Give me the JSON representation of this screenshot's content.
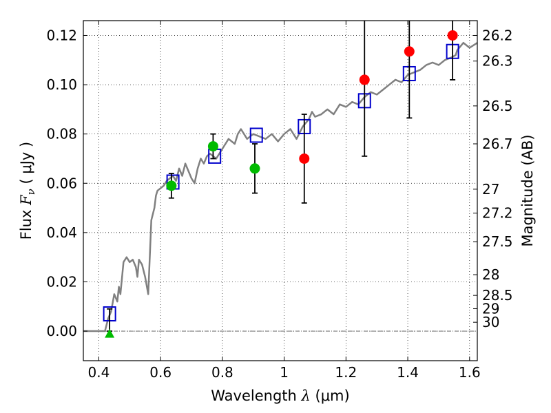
{
  "chart_data": {
    "type": "scatter",
    "title": "",
    "xlabel": "Wavelength  λ (μm)",
    "xlabel_parts": {
      "text": "Wavelength  ",
      "symbol": "λ",
      "unit": " (μm)"
    },
    "ylabel": "Flux  Fν ( μJy )",
    "ylabel_parts": {
      "text": "Flux  ",
      "symbol": "F",
      "sub": "ν",
      "unit": " ( μJy )"
    },
    "ylabel_right": "Magnitude (AB)",
    "xlim": [
      0.35,
      1.625
    ],
    "ylim": [
      -0.012,
      0.126
    ],
    "grid": true,
    "x_ticks": [
      {
        "value": 0.4,
        "label": "0.4"
      },
      {
        "value": 0.6,
        "label": "0.6"
      },
      {
        "value": 0.8,
        "label": "0.8"
      },
      {
        "value": 1.0,
        "label": "1"
      },
      {
        "value": 1.2,
        "label": "1.2"
      },
      {
        "value": 1.4,
        "label": "1.4"
      },
      {
        "value": 1.6,
        "label": "1.6"
      }
    ],
    "y_ticks": [
      {
        "value": 0.0,
        "label": "0.00"
      },
      {
        "value": 0.02,
        "label": "0.02"
      },
      {
        "value": 0.04,
        "label": "0.04"
      },
      {
        "value": 0.06,
        "label": "0.06"
      },
      {
        "value": 0.08,
        "label": "0.08"
      },
      {
        "value": 0.1,
        "label": "0.10"
      },
      {
        "value": 0.12,
        "label": "0.12"
      }
    ],
    "right_ticks": [
      {
        "flux": 0.12,
        "label": "26.2"
      },
      {
        "flux": 0.1096,
        "label": "26.3"
      },
      {
        "flux": 0.0914,
        "label": "26.5"
      },
      {
        "flux": 0.076,
        "label": "26.7"
      },
      {
        "flux": 0.0576,
        "label": "27"
      },
      {
        "flux": 0.0479,
        "label": "27.2"
      },
      {
        "flux": 0.0363,
        "label": "27.5"
      },
      {
        "flux": 0.0229,
        "label": "28"
      },
      {
        "flux": 0.0145,
        "label": "28.5"
      },
      {
        "flux": 0.0091,
        "label": "29"
      },
      {
        "flux": 0.0036,
        "label": "30"
      }
    ],
    "series": [
      {
        "kind": "model_spectrum",
        "color": "#808080",
        "x": [
          0.35,
          0.42,
          0.43,
          0.44,
          0.45,
          0.46,
          0.465,
          0.47,
          0.48,
          0.49,
          0.5,
          0.51,
          0.52,
          0.525,
          0.53,
          0.54,
          0.55,
          0.56,
          0.565,
          0.57,
          0.58,
          0.585,
          0.59,
          0.6,
          0.61,
          0.62,
          0.63,
          0.64,
          0.65,
          0.66,
          0.67,
          0.68,
          0.69,
          0.7,
          0.71,
          0.72,
          0.73,
          0.74,
          0.75,
          0.76,
          0.78,
          0.8,
          0.82,
          0.84,
          0.85,
          0.86,
          0.88,
          0.9,
          0.92,
          0.94,
          0.96,
          0.98,
          1.0,
          1.02,
          1.04,
          1.06,
          1.08,
          1.09,
          1.1,
          1.12,
          1.14,
          1.16,
          1.18,
          1.2,
          1.22,
          1.24,
          1.26,
          1.28,
          1.3,
          1.32,
          1.34,
          1.36,
          1.38,
          1.4,
          1.42,
          1.44,
          1.46,
          1.48,
          1.5,
          1.52,
          1.54,
          1.555,
          1.56,
          1.58,
          1.6,
          1.625
        ],
        "y": [
          0.0,
          0.0,
          0.005,
          0.008,
          0.015,
          0.012,
          0.018,
          0.015,
          0.028,
          0.03,
          0.028,
          0.029,
          0.026,
          0.022,
          0.029,
          0.027,
          0.022,
          0.015,
          0.03,
          0.045,
          0.05,
          0.055,
          0.057,
          0.058,
          0.059,
          0.061,
          0.062,
          0.063,
          0.061,
          0.066,
          0.063,
          0.068,
          0.065,
          0.062,
          0.06,
          0.066,
          0.07,
          0.068,
          0.071,
          0.072,
          0.07,
          0.074,
          0.078,
          0.076,
          0.08,
          0.082,
          0.078,
          0.08,
          0.079,
          0.078,
          0.08,
          0.077,
          0.08,
          0.082,
          0.078,
          0.083,
          0.086,
          0.089,
          0.087,
          0.088,
          0.09,
          0.088,
          0.092,
          0.091,
          0.093,
          0.092,
          0.095,
          0.097,
          0.096,
          0.098,
          0.1,
          0.102,
          0.101,
          0.104,
          0.105,
          0.106,
          0.108,
          0.109,
          0.108,
          0.11,
          0.111,
          0.112,
          0.114,
          0.117,
          0.115,
          0.117
        ]
      },
      {
        "kind": "model_photometry",
        "marker": "open-square",
        "color": "#0000cc",
        "x": [
          0.435,
          0.64,
          0.775,
          0.91,
          1.065,
          1.26,
          1.405,
          1.545
        ],
        "y": [
          0.007,
          0.0605,
          0.071,
          0.0795,
          0.083,
          0.0935,
          0.1045,
          0.1135
        ]
      },
      {
        "kind": "observed_detections",
        "marker": "circle",
        "color": "#00bb00",
        "x": [
          0.635,
          0.77,
          0.905
        ],
        "y": [
          0.059,
          0.075,
          0.066
        ],
        "yerr_low": [
          0.054,
          0.07,
          0.056
        ],
        "yerr_high": [
          0.064,
          0.08,
          0.076
        ]
      },
      {
        "kind": "observed_upper_limit",
        "marker": "triangle",
        "color": "#00bb00",
        "x": [
          0.435
        ],
        "y": [
          -0.001
        ],
        "yerr_low": [
          0.0
        ],
        "yerr_high": [
          0.009
        ]
      },
      {
        "kind": "observed_low_significance",
        "marker": "circle",
        "color": "#ff0000",
        "x": [
          1.065,
          1.26,
          1.405,
          1.545
        ],
        "y": [
          0.07,
          0.102,
          0.1135,
          0.12
        ],
        "yerr_low": [
          0.052,
          0.071,
          0.0865,
          0.102
        ],
        "yerr_high": [
          0.088,
          0.13,
          0.13,
          0.13
        ]
      }
    ]
  }
}
